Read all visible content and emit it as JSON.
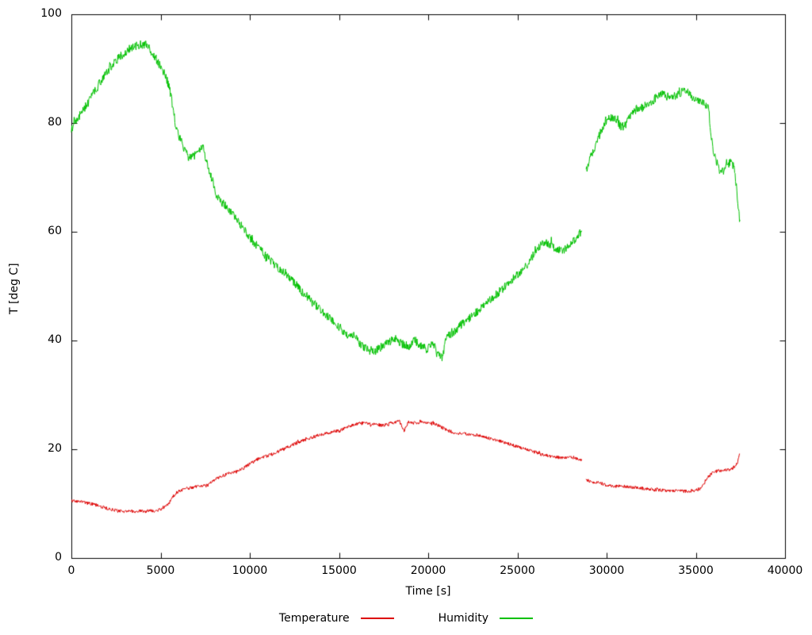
{
  "chart_data": {
    "type": "line",
    "title": "",
    "xlabel": "Time [s]",
    "ylabel": "T [deg C]",
    "xlim": [
      0,
      40000
    ],
    "ylim": [
      0,
      100
    ],
    "xticks": [
      0,
      5000,
      10000,
      15000,
      20000,
      25000,
      30000,
      35000,
      40000
    ],
    "yticks": [
      0,
      20,
      40,
      60,
      80,
      100
    ],
    "grid": false,
    "legend_position": "bottom-center",
    "axis_color": "#000000",
    "series": [
      {
        "name": "Temperature",
        "color": "#dd0000",
        "noise": 0.3,
        "segments": [
          [
            [
              0,
              10.6
            ],
            [
              300,
              10.4
            ],
            [
              600,
              10.4
            ],
            [
              900,
              10.1
            ],
            [
              1200,
              9.9
            ],
            [
              1500,
              9.6
            ],
            [
              1800,
              9.3
            ],
            [
              2100,
              9.0
            ],
            [
              2400,
              8.8
            ],
            [
              2700,
              8.7
            ],
            [
              3000,
              8.6
            ],
            [
              3600,
              8.6
            ],
            [
              4200,
              8.6
            ],
            [
              4700,
              8.7
            ],
            [
              5000,
              9.0
            ],
            [
              5300,
              9.6
            ],
            [
              5500,
              10.2
            ],
            [
              5700,
              11.3
            ],
            [
              5900,
              12.1
            ],
            [
              6200,
              12.5
            ],
            [
              6500,
              12.8
            ],
            [
              7000,
              13.1
            ],
            [
              7400,
              13.4
            ],
            [
              7600,
              13.3
            ],
            [
              8000,
              14.3
            ],
            [
              8400,
              15.0
            ],
            [
              8800,
              15.5
            ],
            [
              9200,
              15.8
            ],
            [
              9600,
              16.4
            ],
            [
              10000,
              17.3
            ],
            [
              10400,
              18.1
            ],
            [
              10800,
              18.6
            ],
            [
              11200,
              19.0
            ],
            [
              11600,
              19.6
            ],
            [
              12000,
              20.2
            ],
            [
              12500,
              21.0
            ],
            [
              13000,
              21.6
            ],
            [
              13500,
              22.2
            ],
            [
              14000,
              22.7
            ],
            [
              14500,
              23.1
            ],
            [
              15000,
              23.4
            ],
            [
              15500,
              24.1
            ],
            [
              16000,
              24.7
            ],
            [
              16500,
              24.8
            ],
            [
              17000,
              24.6
            ],
            [
              17500,
              24.4
            ],
            [
              18000,
              24.9
            ],
            [
              18400,
              25.1
            ],
            [
              18650,
              23.4
            ],
            [
              18900,
              25.0
            ],
            [
              19300,
              24.8
            ],
            [
              19700,
              25.1
            ],
            [
              20100,
              24.9
            ],
            [
              20500,
              24.5
            ],
            [
              21000,
              23.6
            ],
            [
              21400,
              23.1
            ],
            [
              21800,
              22.9
            ],
            [
              22300,
              22.8
            ],
            [
              22800,
              22.6
            ],
            [
              23300,
              22.1
            ],
            [
              23800,
              21.7
            ],
            [
              24300,
              21.2
            ],
            [
              24800,
              20.7
            ],
            [
              25300,
              20.2
            ],
            [
              25800,
              19.7
            ],
            [
              26300,
              19.1
            ],
            [
              26800,
              18.7
            ],
            [
              27300,
              18.5
            ],
            [
              27800,
              18.5
            ],
            [
              28200,
              18.4
            ],
            [
              28600,
              17.9
            ]
          ],
          [
            [
              28850,
              14.3
            ],
            [
              29200,
              14.0
            ],
            [
              29600,
              13.8
            ],
            [
              30000,
              13.4
            ],
            [
              30500,
              13.2
            ],
            [
              31000,
              13.2
            ],
            [
              31500,
              13.0
            ],
            [
              32000,
              12.8
            ],
            [
              32500,
              12.6
            ],
            [
              33000,
              12.5
            ],
            [
              33500,
              12.4
            ],
            [
              34000,
              12.3
            ],
            [
              34500,
              12.3
            ],
            [
              34900,
              12.4
            ],
            [
              35200,
              12.7
            ],
            [
              35400,
              13.3
            ],
            [
              35600,
              14.6
            ],
            [
              35900,
              15.6
            ],
            [
              36200,
              16.0
            ],
            [
              36500,
              16.1
            ],
            [
              36800,
              16.2
            ],
            [
              37000,
              16.4
            ],
            [
              37200,
              16.9
            ],
            [
              37350,
              17.6
            ],
            [
              37450,
              19.2
            ]
          ]
        ]
      },
      {
        "name": "Humidity",
        "color": "#00c000",
        "noise": 0.8,
        "segments": [
          [
            [
              0,
              78.5
            ],
            [
              150,
              80.3
            ],
            [
              400,
              81.0
            ],
            [
              700,
              82.5
            ],
            [
              1000,
              84.0
            ],
            [
              1400,
              86.3
            ],
            [
              1800,
              88.5
            ],
            [
              2200,
              90.3
            ],
            [
              2600,
              91.8
            ],
            [
              3000,
              93.0
            ],
            [
              3400,
              93.9
            ],
            [
              3800,
              94.4
            ],
            [
              4200,
              94.3
            ],
            [
              4600,
              92.6
            ],
            [
              4900,
              91.0
            ],
            [
              5200,
              89.3
            ],
            [
              5500,
              86.5
            ],
            [
              5700,
              82.5
            ],
            [
              5900,
              78.5
            ],
            [
              6100,
              77.0
            ],
            [
              6400,
              74.8
            ],
            [
              6600,
              73.6
            ],
            [
              6900,
              73.9
            ],
            [
              7200,
              75.0
            ],
            [
              7400,
              75.4
            ],
            [
              7600,
              72.8
            ],
            [
              7900,
              69.5
            ],
            [
              8100,
              67.0
            ],
            [
              8400,
              65.6
            ],
            [
              8700,
              64.5
            ],
            [
              9100,
              62.8
            ],
            [
              9500,
              61.2
            ],
            [
              10000,
              58.8
            ],
            [
              10500,
              57.1
            ],
            [
              11000,
              55.2
            ],
            [
              11500,
              53.6
            ],
            [
              12000,
              52.5
            ],
            [
              12500,
              50.6
            ],
            [
              13000,
              48.7
            ],
            [
              13500,
              47.1
            ],
            [
              14000,
              45.6
            ],
            [
              14500,
              44.1
            ],
            [
              15000,
              42.6
            ],
            [
              15400,
              40.8
            ],
            [
              15800,
              41.3
            ],
            [
              16200,
              39.2
            ],
            [
              16600,
              38.3
            ],
            [
              17000,
              38.0
            ],
            [
              17400,
              38.9
            ],
            [
              17800,
              39.8
            ],
            [
              18200,
              40.4
            ],
            [
              18500,
              39.4
            ],
            [
              18900,
              38.9
            ],
            [
              19200,
              40.3
            ],
            [
              19500,
              39.0
            ],
            [
              19900,
              38.4
            ],
            [
              20200,
              39.4
            ],
            [
              20500,
              38.2
            ],
            [
              20800,
              36.9
            ],
            [
              21000,
              40.3
            ],
            [
              21300,
              41.4
            ],
            [
              21600,
              42.0
            ],
            [
              22000,
              43.4
            ],
            [
              22500,
              44.6
            ],
            [
              23000,
              46.0
            ],
            [
              23500,
              47.5
            ],
            [
              24000,
              49.0
            ],
            [
              24500,
              50.6
            ],
            [
              25000,
              52.1
            ],
            [
              25500,
              53.7
            ],
            [
              25900,
              55.8
            ],
            [
              26200,
              57.2
            ],
            [
              26500,
              57.9
            ],
            [
              26900,
              57.6
            ],
            [
              27200,
              56.7
            ],
            [
              27500,
              56.6
            ],
            [
              27900,
              57.3
            ],
            [
              28300,
              58.8
            ],
            [
              28600,
              60.2
            ]
          ],
          [
            [
              28850,
              71.0
            ],
            [
              29100,
              73.8
            ],
            [
              29400,
              76.2
            ],
            [
              29700,
              78.6
            ],
            [
              30000,
              80.4
            ],
            [
              30300,
              81.1
            ],
            [
              30600,
              80.4
            ],
            [
              30800,
              79.2
            ],
            [
              31100,
              79.8
            ],
            [
              31400,
              82.0
            ],
            [
              31800,
              82.8
            ],
            [
              32200,
              83.3
            ],
            [
              32600,
              84.1
            ],
            [
              33000,
              85.4
            ],
            [
              33300,
              85.0
            ],
            [
              33600,
              84.6
            ],
            [
              34000,
              85.4
            ],
            [
              34300,
              85.9
            ],
            [
              34600,
              85.5
            ],
            [
              35000,
              84.2
            ],
            [
              35400,
              83.6
            ],
            [
              35700,
              83.0
            ],
            [
              35850,
              78.0
            ],
            [
              36000,
              74.5
            ],
            [
              36200,
              72.0
            ],
            [
              36400,
              70.8
            ],
            [
              36600,
              71.5
            ],
            [
              36800,
              72.3
            ],
            [
              37000,
              73.2
            ],
            [
              37150,
              71.5
            ],
            [
              37300,
              67.5
            ],
            [
              37400,
              63.5
            ],
            [
              37470,
              62.2
            ]
          ]
        ]
      }
    ]
  }
}
